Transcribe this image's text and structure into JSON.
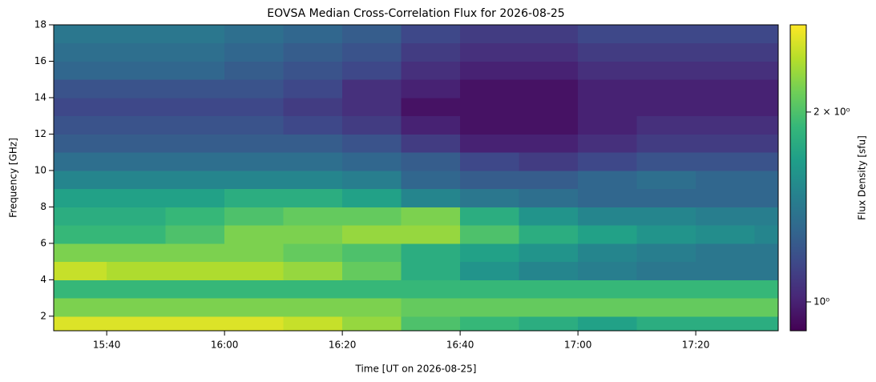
{
  "chart_data": {
    "type": "heatmap",
    "title": "EOVSA Median Cross-Correlation Flux for 2026-08-25",
    "xlabel": "Time [UT on 2026-08-25]",
    "ylabel": "Frequency [GHz]",
    "colorbar_label": "Flux Density [sfu]",
    "colormap": "viridis",
    "color_scale": "log",
    "x_edges": [
      "15:31",
      "15:40",
      "15:50",
      "16:00",
      "16:10",
      "16:20",
      "16:30",
      "16:40",
      "16:50",
      "17:00",
      "17:10",
      "17:20",
      "17:30",
      "17:34"
    ],
    "y_edges": [
      1.2,
      2,
      3,
      4,
      5,
      6,
      7,
      8,
      9,
      10,
      11,
      12,
      13,
      14,
      15,
      16,
      17,
      18
    ],
    "values": [
      [
        2.6,
        2.6,
        2.6,
        2.6,
        2.5,
        2.3,
        2.0,
        1.9,
        1.8,
        1.7,
        1.8,
        1.8,
        1.8
      ],
      [
        2.2,
        2.2,
        2.2,
        2.2,
        2.2,
        2.2,
        2.1,
        2.1,
        2.1,
        2.1,
        2.1,
        2.1,
        2.1
      ],
      [
        1.9,
        1.9,
        1.9,
        1.9,
        1.9,
        1.9,
        1.9,
        1.9,
        1.9,
        1.9,
        1.9,
        1.9,
        1.9
      ],
      [
        2.5,
        2.4,
        2.4,
        2.4,
        2.3,
        2.1,
        1.8,
        1.6,
        1.5,
        1.45,
        1.4,
        1.4,
        1.4
      ],
      [
        2.2,
        2.2,
        2.2,
        2.2,
        2.1,
        2.0,
        1.8,
        1.7,
        1.6,
        1.5,
        1.45,
        1.4,
        1.4
      ],
      [
        1.9,
        1.9,
        2.0,
        2.2,
        2.2,
        2.3,
        2.3,
        2.0,
        1.8,
        1.7,
        1.6,
        1.55,
        1.5
      ],
      [
        1.8,
        1.8,
        1.9,
        2.0,
        2.1,
        2.1,
        2.2,
        1.8,
        1.6,
        1.5,
        1.5,
        1.45,
        1.45
      ],
      [
        1.7,
        1.7,
        1.7,
        1.8,
        1.8,
        1.7,
        1.5,
        1.4,
        1.35,
        1.3,
        1.3,
        1.3,
        1.3
      ],
      [
        1.5,
        1.5,
        1.5,
        1.5,
        1.5,
        1.45,
        1.3,
        1.25,
        1.25,
        1.3,
        1.35,
        1.3,
        1.3
      ],
      [
        1.35,
        1.35,
        1.35,
        1.35,
        1.35,
        1.3,
        1.25,
        1.15,
        1.1,
        1.15,
        1.2,
        1.2,
        1.2
      ],
      [
        1.25,
        1.25,
        1.25,
        1.25,
        1.25,
        1.2,
        1.1,
        1.0,
        1.0,
        1.05,
        1.1,
        1.1,
        1.1
      ],
      [
        1.2,
        1.2,
        1.2,
        1.2,
        1.15,
        1.1,
        1.0,
        0.95,
        0.95,
        1.0,
        1.05,
        1.05,
        1.05
      ],
      [
        1.15,
        1.15,
        1.15,
        1.15,
        1.1,
        1.05,
        0.95,
        0.95,
        0.95,
        1.0,
        1.0,
        1.0,
        1.0
      ],
      [
        1.2,
        1.2,
        1.2,
        1.2,
        1.15,
        1.05,
        1.0,
        0.95,
        0.95,
        1.0,
        1.0,
        1.0,
        1.0
      ],
      [
        1.3,
        1.3,
        1.3,
        1.25,
        1.2,
        1.15,
        1.05,
        1.0,
        1.0,
        1.05,
        1.05,
        1.05,
        1.05
      ],
      [
        1.35,
        1.35,
        1.35,
        1.3,
        1.25,
        1.2,
        1.1,
        1.05,
        1.05,
        1.1,
        1.1,
        1.1,
        1.1
      ],
      [
        1.4,
        1.4,
        1.4,
        1.35,
        1.3,
        1.25,
        1.15,
        1.1,
        1.1,
        1.15,
        1.15,
        1.15,
        1.15
      ]
    ],
    "xlim": [
      "15:31",
      "17:34"
    ],
    "xticks": [
      "15:40",
      "16:00",
      "16:20",
      "16:40",
      "17:00",
      "17:20"
    ],
    "ylim": [
      1.2,
      18
    ],
    "yticks": [
      2,
      4,
      6,
      8,
      10,
      12,
      14,
      16,
      18
    ],
    "clim": [
      0.9,
      2.75
    ],
    "cticks": [
      {
        "value": 1,
        "label": "10⁰"
      },
      {
        "value": 2,
        "label": "2 × 10⁰"
      }
    ]
  }
}
